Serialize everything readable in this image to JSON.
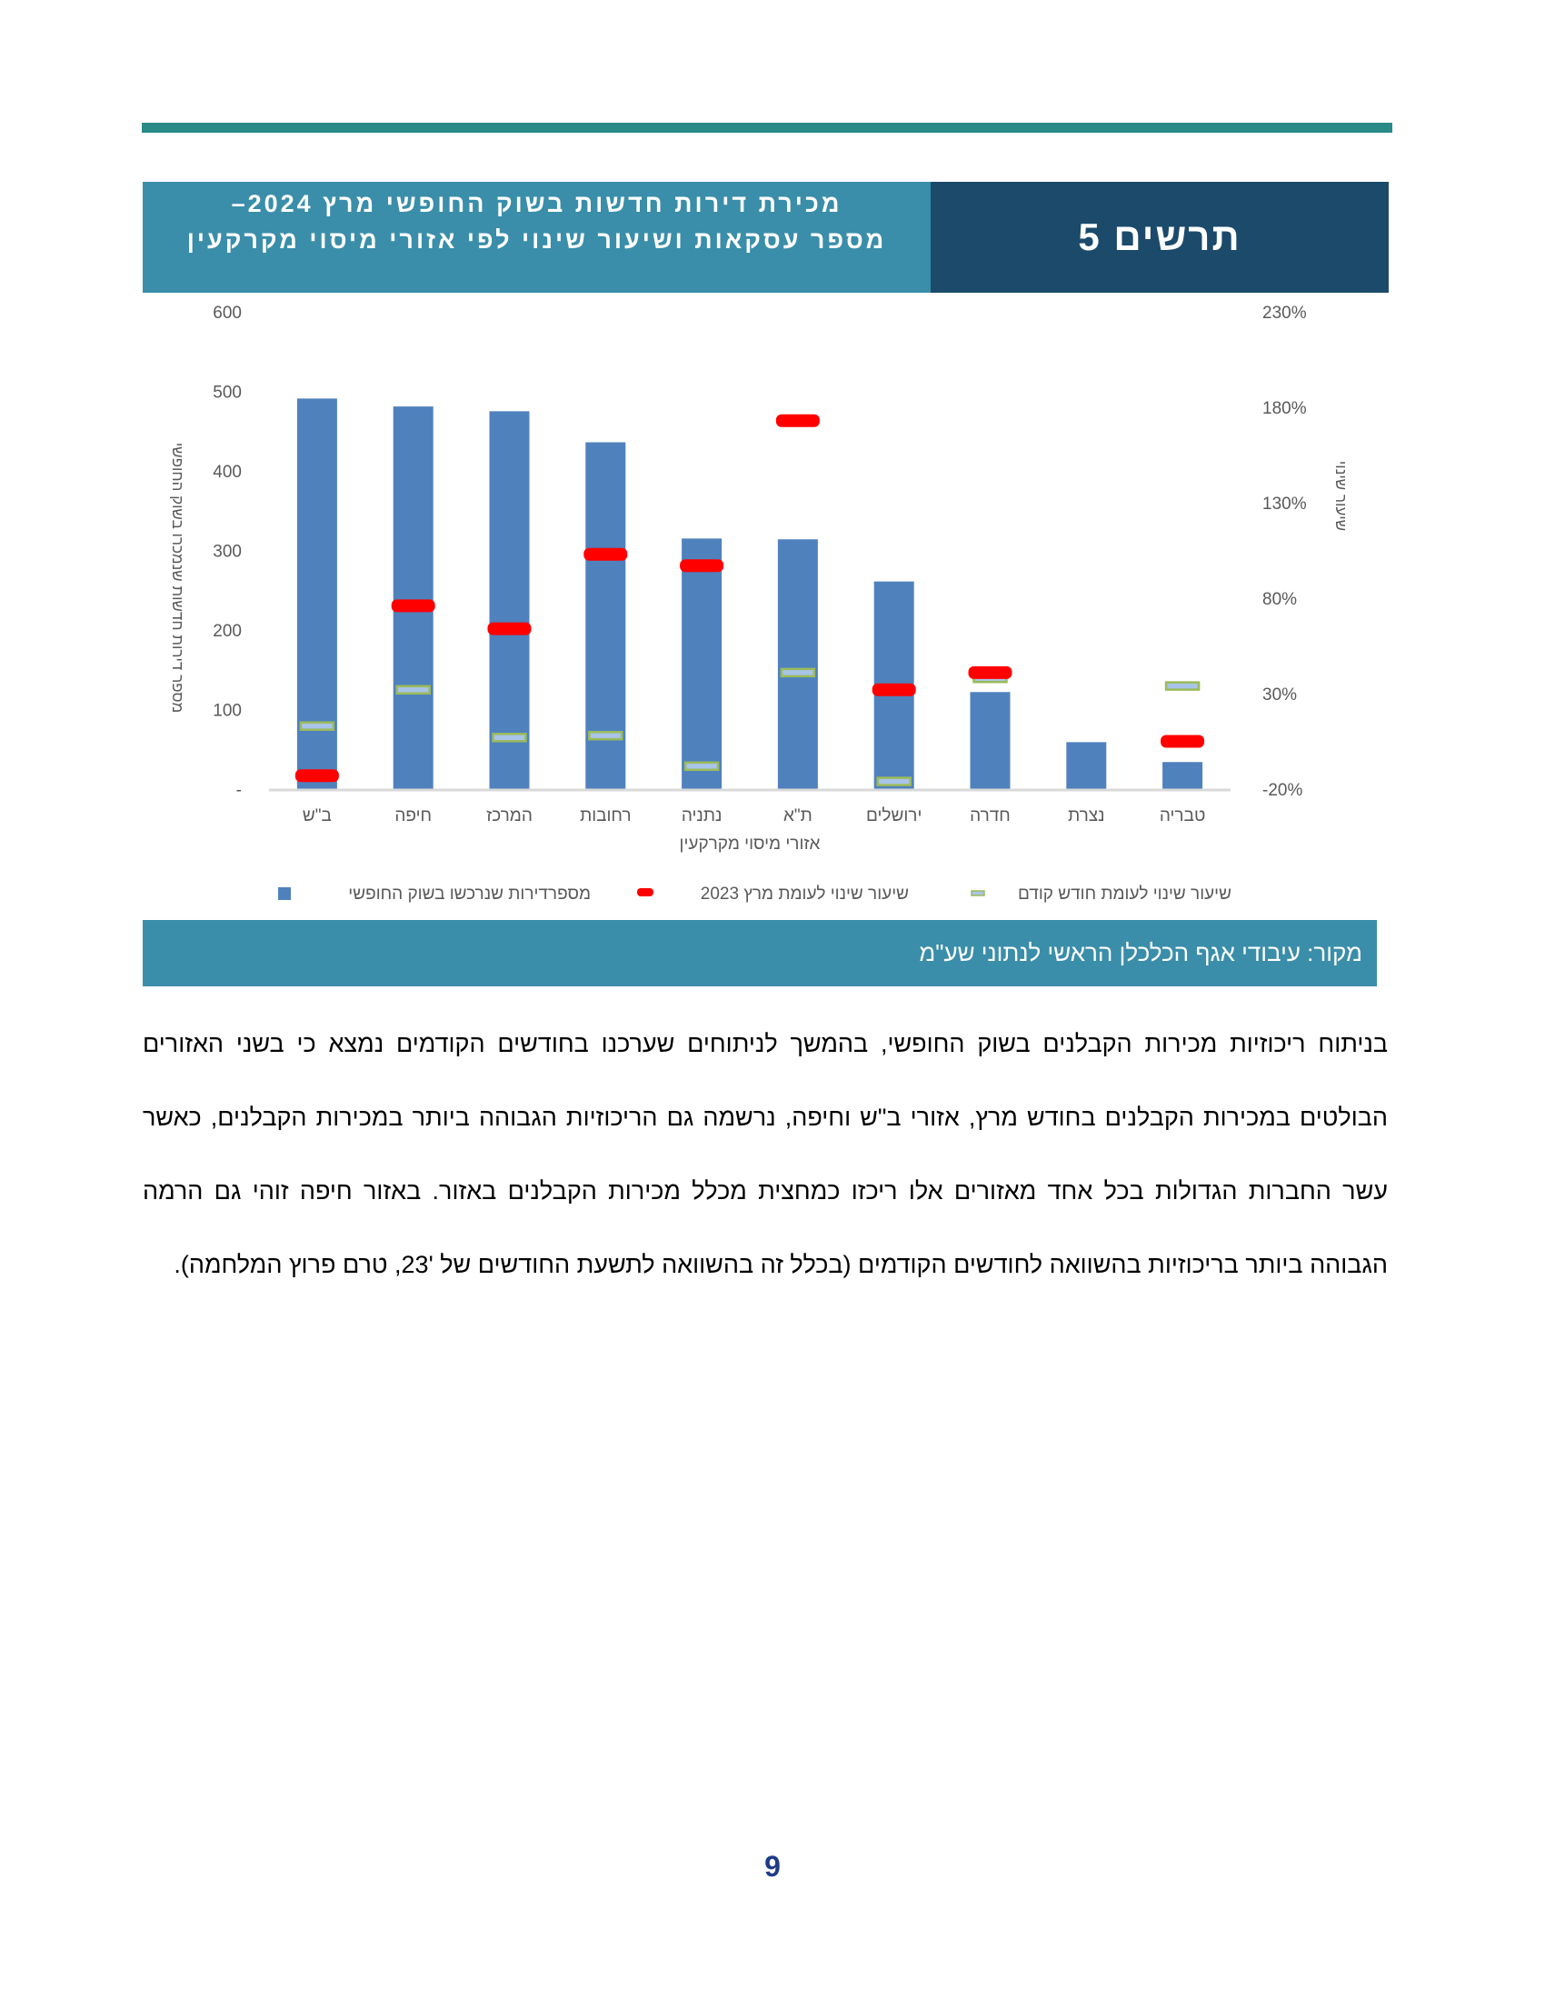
{
  "header": {
    "figure_label": "תרשים 5",
    "title_line1": "מכירת דירות חדשות בשוק החופשי מרץ 2024–",
    "title_line2": "מספר עסקאות ושיעור שינוי לפי אזורי מיסוי מקרקעין"
  },
  "chart_data": {
    "type": "bar",
    "categories": [
      "ב\"ש",
      "חיפה",
      "המרכז",
      "רחובות",
      "נתניה",
      "ת\"א",
      "ירושלים",
      "חדרה",
      "נצרת",
      "טבריה"
    ],
    "xlabel": "אזורי מיסוי מקרקעין",
    "ylabel": "מספר דירות חדשות שנמכרו בשוק החופשי",
    "y2label": "שיעור שינוי",
    "ylim": [
      0,
      600
    ],
    "yticks": [
      "-",
      "100",
      "200",
      "300",
      "400",
      "500",
      "600"
    ],
    "y2lim": [
      -20,
      230
    ],
    "y2ticks": [
      "-20%",
      "30%",
      "80%",
      "130%",
      "180%",
      "230%"
    ],
    "grid": false,
    "legend_position": "bottom",
    "series": [
      {
        "name": "מספרדירות שנרכשו בשוק החופשי",
        "kind": "bar",
        "axis": "left",
        "color": "#4f81bd",
        "values": [
          491,
          481,
          475,
          436,
          315,
          314,
          261,
          122,
          59,
          34
        ]
      },
      {
        "name": "שיעור שינוי לעומת מרץ 2023",
        "kind": "marker",
        "axis": "right",
        "color": "#ff0000",
        "values": [
          -13,
          76,
          64,
          103,
          97,
          173,
          32,
          41,
          null,
          5
        ]
      },
      {
        "name": "שיעור שינוי לעומת חודש קודם",
        "kind": "marker",
        "axis": "right",
        "color": "#9bbb59",
        "values": [
          13,
          32,
          7,
          8,
          -8,
          41,
          -16,
          38,
          null,
          34
        ]
      }
    ]
  },
  "source": "מקור: עיבודי אגף הכלכלן הראשי לנתוני שע\"מ",
  "body": "בניתוח ריכוזיות מכירות הקבלנים בשוק החופשי, בהמשך לניתוחים שערכנו בחודשים הקודמים נמצא כי בשני האזורים הבולטים במכירות הקבלנים בחודש מרץ, אזורי ב\"ש וחיפה, נרשמה גם הריכוזיות הגבוהה ביותר במכירות הקבלנים, כאשר עשר החברות הגדולות בכל אחד מאזורים אלו ריכזו כמחצית מכלל מכירות הקבלנים באזור. באזור חיפה זוהי גם הרמה הגבוהה ביותר בריכוזיות בהשוואה לחודשים הקודמים (בכלל זה בהשוואה לתשעת החודשים של '23, טרם פרוץ המלחמה).",
  "page_number": "9"
}
